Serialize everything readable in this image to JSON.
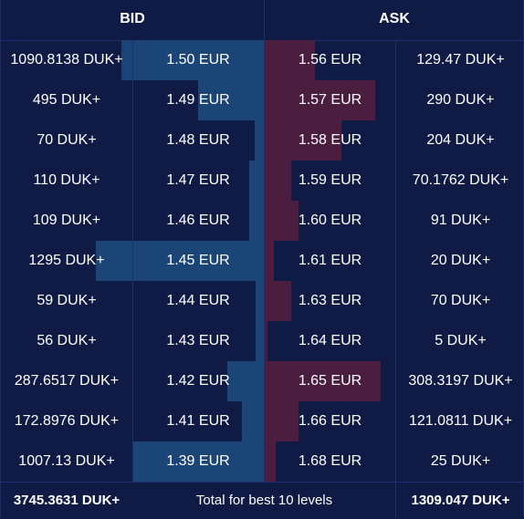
{
  "header": {
    "bid_label": "BID",
    "ask_label": "ASK"
  },
  "rows": [
    {
      "bid_qty": "1090.8138 DUK+",
      "bid_price": "1.50 EUR",
      "ask_price": "1.56 EUR",
      "ask_qty": "129.47 DUK+",
      "bid_depth": 0.54,
      "ask_depth": 0.19
    },
    {
      "bid_qty": "495 DUK+",
      "bid_price": "1.49 EUR",
      "ask_price": "1.57 EUR",
      "ask_qty": "290 DUK+",
      "bid_depth": 0.25,
      "ask_depth": 0.42
    },
    {
      "bid_qty": "70 DUK+",
      "bid_price": "1.48 EUR",
      "ask_price": "1.58 EUR",
      "ask_qty": "204 DUK+",
      "bid_depth": 0.035,
      "ask_depth": 0.29
    },
    {
      "bid_qty": "110 DUK+",
      "bid_price": "1.47 EUR",
      "ask_price": "1.59 EUR",
      "ask_qty": "70.1762 DUK+",
      "bid_depth": 0.055,
      "ask_depth": 0.1
    },
    {
      "bid_qty": "109 DUK+",
      "bid_price": "1.46 EUR",
      "ask_price": "1.60 EUR",
      "ask_qty": "91 DUK+",
      "bid_depth": 0.055,
      "ask_depth": 0.13
    },
    {
      "bid_qty": "1295 DUK+",
      "bid_price": "1.45 EUR",
      "ask_price": "1.61 EUR",
      "ask_qty": "20 DUK+",
      "bid_depth": 0.64,
      "ask_depth": 0.035
    },
    {
      "bid_qty": "59 DUK+",
      "bid_price": "1.44 EUR",
      "ask_price": "1.63 EUR",
      "ask_qty": "70 DUK+",
      "bid_depth": 0.03,
      "ask_depth": 0.1
    },
    {
      "bid_qty": "56 DUK+",
      "bid_price": "1.43 EUR",
      "ask_price": "1.64 EUR",
      "ask_qty": "5 DUK+",
      "bid_depth": 0.03,
      "ask_depth": 0.01
    },
    {
      "bid_qty": "287.6517 DUK+",
      "bid_price": "1.42 EUR",
      "ask_price": "1.65 EUR",
      "ask_qty": "308.3197 DUK+",
      "bid_depth": 0.14,
      "ask_depth": 0.44
    },
    {
      "bid_qty": "172.8976 DUK+",
      "bid_price": "1.41 EUR",
      "ask_price": "1.66 EUR",
      "ask_qty": "121.0811 DUK+",
      "bid_depth": 0.085,
      "ask_depth": 0.13
    },
    {
      "bid_qty": "1007.13 DUK+",
      "bid_price": "1.39 EUR",
      "ask_price": "1.68 EUR",
      "ask_qty": "25 DUK+",
      "bid_depth": 0.5,
      "ask_depth": 0.04
    }
  ],
  "footer": {
    "bid_total": "3745.3631 DUK+",
    "label": "Total for best 10 levels",
    "ask_total": "1309.047 DUK+"
  },
  "colors": {
    "background": "#0f1b45",
    "bid_bar": "#1c4577",
    "ask_bar": "#4b1e3f",
    "divider": "#1f2f70"
  }
}
